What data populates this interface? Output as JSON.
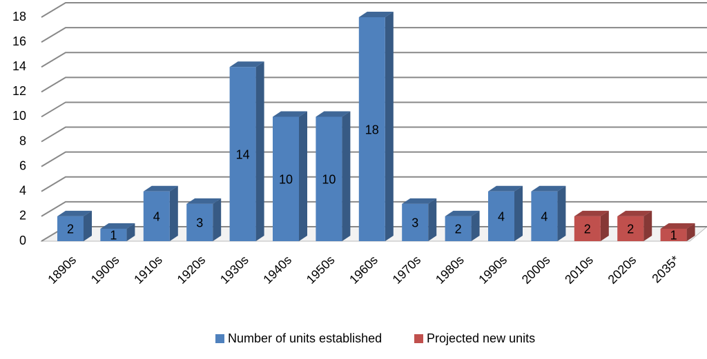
{
  "chart_data": {
    "type": "bar3d",
    "categories": [
      "1890s",
      "1900s",
      "1910s",
      "1920s",
      "1930s",
      "1940s",
      "1950s",
      "1960s",
      "1970s",
      "1980s",
      "1990s",
      "2000s",
      "2010s",
      "2020s",
      "2035*"
    ],
    "series": [
      {
        "name": "Number of units established",
        "color": "#4f81bd",
        "values": [
          2,
          1,
          4,
          3,
          14,
          10,
          10,
          18,
          3,
          2,
          4,
          4,
          null,
          null,
          null
        ]
      },
      {
        "name": "Projected new units",
        "color": "#c0504d",
        "values": [
          null,
          null,
          null,
          null,
          null,
          null,
          null,
          null,
          null,
          null,
          null,
          null,
          2,
          2,
          1
        ]
      }
    ],
    "ylim": [
      0,
      18
    ],
    "yticks": [
      0,
      2,
      4,
      6,
      8,
      10,
      12,
      14,
      16,
      18
    ],
    "grid": true,
    "legend": "bottom"
  }
}
